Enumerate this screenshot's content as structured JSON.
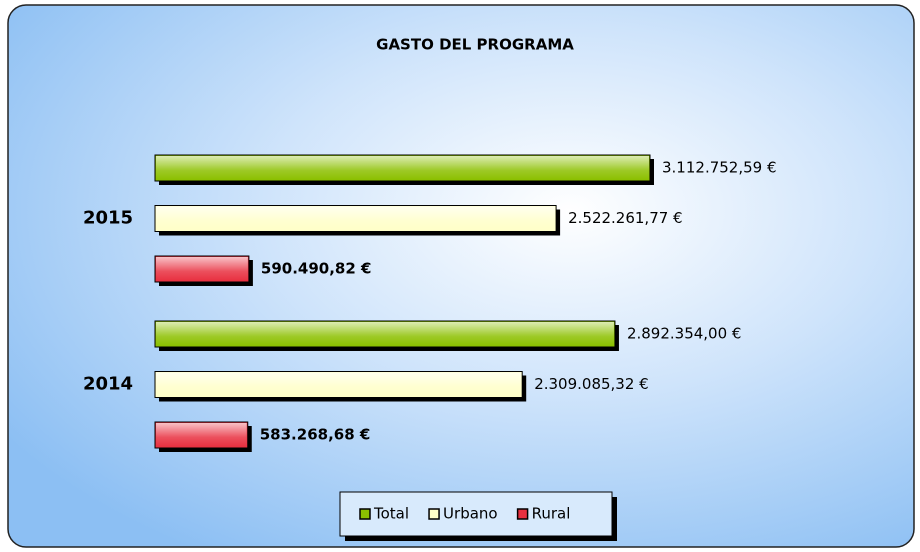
{
  "chart_data": {
    "type": "hbar",
    "title": "GASTO DEL PROGRAMA",
    "categories": [
      "2015",
      "2014"
    ],
    "series": [
      {
        "name": "Total",
        "color": "#8cc000",
        "values": [
          3112752.59,
          2892354.0
        ],
        "value_labels": [
          "3.112.752,59 €",
          "2.892.354,00 €"
        ]
      },
      {
        "name": "Urbano",
        "color": "#ffffc8",
        "values": [
          2522261.77,
          2309085.32
        ],
        "value_labels": [
          "2.522.261,77 €",
          "2.309.085,32 €"
        ]
      },
      {
        "name": "Rural",
        "color": "#e83040",
        "values": [
          590490.82,
          583268.68
        ],
        "value_labels": [
          "590.490,82 €",
          "583.268,68 €"
        ]
      }
    ],
    "legend": "bottom"
  }
}
